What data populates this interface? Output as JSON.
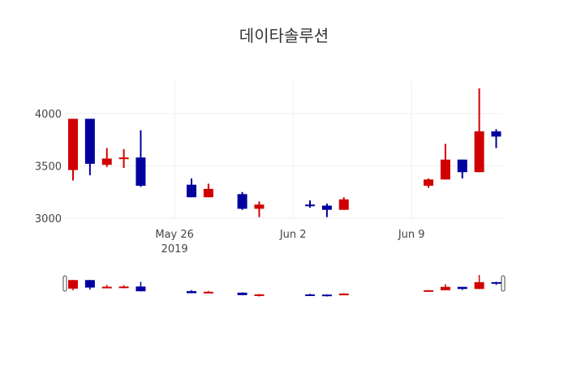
{
  "chart_data": {
    "type": "candlestick",
    "title": "데이타솔루션",
    "xlabel": "",
    "ylabel": "",
    "ylim": [
      2990,
      4240
    ],
    "yticks": [
      3000,
      3500,
      4000
    ],
    "xticks": [
      {
        "label": "May 26",
        "sub": "2019",
        "date": "2019-05-26"
      },
      {
        "label": "Jun 2",
        "sub": "",
        "date": "2019-06-02"
      },
      {
        "label": "Jun 9",
        "sub": "",
        "date": "2019-06-09"
      }
    ],
    "grid": true,
    "rangeslider": true,
    "colors": {
      "up": "#d10000",
      "down": "#00009e"
    },
    "candles": [
      {
        "date": "2019-05-20",
        "dayIndex": 0,
        "open": 3460,
        "high": 3950,
        "low": 3360,
        "close": 3950,
        "dir": "up"
      },
      {
        "date": "2019-05-21",
        "dayIndex": 1,
        "open": 3950,
        "high": 3950,
        "low": 3410,
        "close": 3520,
        "dir": "down"
      },
      {
        "date": "2019-05-22",
        "dayIndex": 2,
        "open": 3510,
        "high": 3670,
        "low": 3490,
        "close": 3570,
        "dir": "up"
      },
      {
        "date": "2019-05-23",
        "dayIndex": 3,
        "open": 3570,
        "high": 3660,
        "low": 3480,
        "close": 3580,
        "dir": "up"
      },
      {
        "date": "2019-05-24",
        "dayIndex": 4,
        "open": 3580,
        "high": 3840,
        "low": 3300,
        "close": 3310,
        "dir": "down"
      },
      {
        "date": "2019-05-27",
        "dayIndex": 7,
        "open": 3320,
        "high": 3380,
        "low": 3200,
        "close": 3200,
        "dir": "down"
      },
      {
        "date": "2019-05-28",
        "dayIndex": 8,
        "open": 3200,
        "high": 3330,
        "low": 3200,
        "close": 3280,
        "dir": "up"
      },
      {
        "date": "2019-05-30",
        "dayIndex": 10,
        "open": 3230,
        "high": 3250,
        "low": 3080,
        "close": 3090,
        "dir": "down"
      },
      {
        "date": "2019-05-31",
        "dayIndex": 11,
        "open": 3090,
        "high": 3160,
        "low": 3010,
        "close": 3130,
        "dir": "up"
      },
      {
        "date": "2019-06-03",
        "dayIndex": 14,
        "open": 3130,
        "high": 3170,
        "low": 3100,
        "close": 3120,
        "dir": "down"
      },
      {
        "date": "2019-06-04",
        "dayIndex": 15,
        "open": 3120,
        "high": 3140,
        "low": 3010,
        "close": 3080,
        "dir": "down"
      },
      {
        "date": "2019-06-05",
        "dayIndex": 16,
        "open": 3080,
        "high": 3200,
        "low": 3080,
        "close": 3180,
        "dir": "up"
      },
      {
        "date": "2019-06-10",
        "dayIndex": 21,
        "open": 3310,
        "high": 3380,
        "low": 3290,
        "close": 3370,
        "dir": "up"
      },
      {
        "date": "2019-06-11",
        "dayIndex": 22,
        "open": 3370,
        "high": 3710,
        "low": 3370,
        "close": 3560,
        "dir": "up"
      },
      {
        "date": "2019-06-12",
        "dayIndex": 23,
        "open": 3560,
        "high": 3560,
        "low": 3380,
        "close": 3440,
        "dir": "down"
      },
      {
        "date": "2019-06-13",
        "dayIndex": 24,
        "open": 3440,
        "high": 4240,
        "low": 3440,
        "close": 3830,
        "dir": "up"
      },
      {
        "date": "2019-06-14",
        "dayIndex": 25,
        "open": 3830,
        "high": 3850,
        "low": 3670,
        "close": 3780,
        "dir": "down"
      }
    ]
  }
}
